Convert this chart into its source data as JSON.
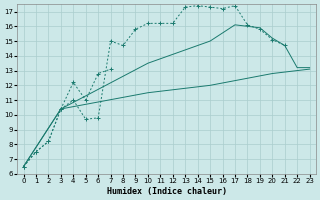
{
  "xlabel": "Humidex (Indice chaleur)",
  "background_color": "#cce8e8",
  "grid_color": "#aacece",
  "line_color": "#1a7a6e",
  "xlim": [
    -0.5,
    23.5
  ],
  "ylim": [
    6,
    17.5
  ],
  "yticks": [
    6,
    7,
    8,
    9,
    10,
    11,
    12,
    13,
    14,
    15,
    16,
    17
  ],
  "xticks": [
    0,
    1,
    2,
    3,
    4,
    5,
    6,
    7,
    8,
    9,
    10,
    11,
    12,
    13,
    14,
    15,
    16,
    17,
    18,
    19,
    20,
    21,
    22,
    23
  ],
  "line1_x": [
    0,
    1,
    2,
    3,
    4,
    5,
    6,
    7,
    8,
    9,
    10,
    11,
    12,
    13,
    14,
    15,
    16,
    17,
    18,
    19,
    20,
    21
  ],
  "line1_y": [
    6.5,
    7.5,
    8.2,
    10.4,
    11.0,
    9.7,
    9.8,
    15.0,
    14.7,
    15.8,
    16.2,
    16.2,
    16.2,
    17.3,
    17.4,
    17.3,
    17.2,
    17.4,
    16.1,
    15.8,
    15.1,
    14.7
  ],
  "line2_x": [
    0,
    1,
    2,
    3,
    4,
    5,
    6,
    7
  ],
  "line2_y": [
    6.5,
    7.5,
    8.2,
    10.4,
    12.2,
    11.0,
    12.8,
    13.1
  ],
  "line3_x": [
    0,
    3,
    10,
    15,
    20,
    23
  ],
  "line3_y": [
    6.5,
    10.4,
    11.5,
    12.0,
    12.8,
    13.1
  ],
  "line4_x": [
    0,
    3,
    10,
    15,
    17,
    19,
    20,
    21,
    22,
    23
  ],
  "line4_y": [
    6.5,
    10.4,
    13.5,
    15.0,
    16.1,
    15.9,
    15.2,
    14.7,
    13.2,
    13.2
  ]
}
